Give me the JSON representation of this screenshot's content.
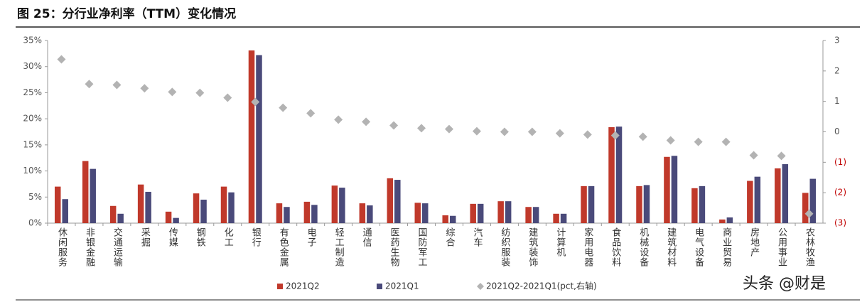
{
  "chart_data": {
    "type": "bar",
    "title": "图 25：分行业净利率（TTM）变化情况",
    "watermark": "头条 @财是",
    "categories": [
      "休闲服务",
      "非银金融",
      "交通运输",
      "采掘",
      "传媒",
      "钢铁",
      "化工",
      "银行",
      "有色金属",
      "电子",
      "轻工制造",
      "通信",
      "医药生物",
      "国防军工",
      "综合",
      "汽车",
      "纺织服装",
      "建筑装饰",
      "计算机",
      "家用电器",
      "食品饮料",
      "机械设备",
      "建筑材料",
      "电气设备",
      "商业贸易",
      "房地产",
      "公用事业",
      "农林牧渔"
    ],
    "series": [
      {
        "name": "2021Q2",
        "type": "bar",
        "color": "#c0392b",
        "values": [
          7.0,
          11.9,
          3.3,
          7.4,
          2.2,
          5.7,
          7.0,
          33.1,
          3.8,
          4.1,
          7.2,
          3.8,
          8.6,
          3.9,
          1.5,
          3.7,
          4.2,
          3.1,
          1.8,
          7.1,
          18.4,
          7.1,
          12.7,
          6.7,
          0.7,
          8.1,
          10.5,
          5.8
        ]
      },
      {
        "name": "2021Q1",
        "type": "bar",
        "color": "#4a4a7a",
        "values": [
          4.6,
          10.4,
          1.8,
          6.0,
          1.0,
          4.5,
          5.9,
          32.2,
          3.1,
          3.5,
          6.8,
          3.4,
          8.3,
          3.8,
          1.4,
          3.7,
          4.2,
          3.1,
          1.8,
          7.1,
          18.5,
          7.3,
          12.9,
          7.1,
          1.1,
          8.9,
          11.3,
          8.5
        ]
      },
      {
        "name": "2021Q2-2021Q1(pct,右轴)",
        "type": "scatter",
        "axis": "y2",
        "color": "#b3b3b3",
        "values": [
          2.38,
          1.57,
          1.54,
          1.43,
          1.31,
          1.28,
          1.12,
          0.98,
          0.79,
          0.61,
          0.4,
          0.33,
          0.21,
          0.12,
          0.09,
          0.02,
          0,
          0,
          -0.05,
          -0.09,
          -0.12,
          -0.16,
          -0.28,
          -0.33,
          -0.33,
          -0.77,
          -0.79,
          -2.69
        ]
      }
    ],
    "ylim": [
      0,
      35
    ],
    "yticks": [
      {
        "value": 0,
        "label": "0%"
      },
      {
        "value": 5,
        "label": "5%"
      },
      {
        "value": 10,
        "label": "10%"
      },
      {
        "value": 15,
        "label": "15%"
      },
      {
        "value": 20,
        "label": "20%"
      },
      {
        "value": 25,
        "label": "25%"
      },
      {
        "value": 30,
        "label": "30%"
      },
      {
        "value": 35,
        "label": "35%"
      }
    ],
    "y2lim": [
      -3,
      3
    ],
    "y2ticks": [
      {
        "value": -3,
        "label": "(3)"
      },
      {
        "value": -2,
        "label": "(2)"
      },
      {
        "value": -1,
        "label": "(1)"
      },
      0,
      1,
      2,
      3
    ],
    "negative_tick_color": "#c00000",
    "grid": false
  }
}
